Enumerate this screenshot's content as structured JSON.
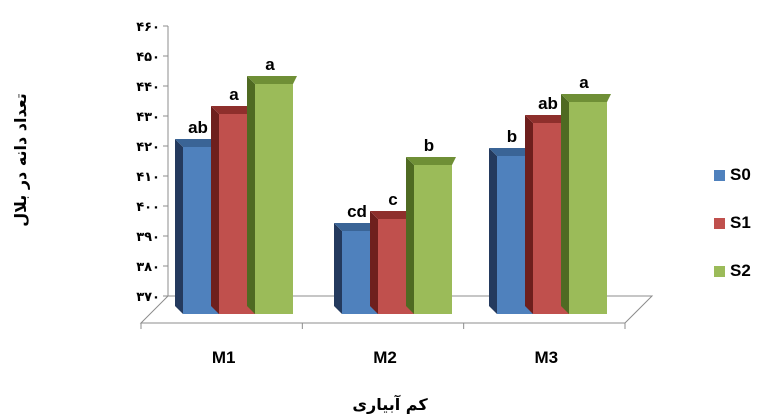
{
  "chart_data": {
    "type": "bar",
    "title": "",
    "xlabel": "کم آبیاری",
    "ylabel": "تعداد دانه در بلال",
    "ylim": [
      370,
      460
    ],
    "yticks": [
      370,
      380,
      390,
      400,
      410,
      420,
      430,
      440,
      450,
      460
    ],
    "ytick_labels": [
      "۳۷۰",
      "۳۸۰",
      "۳۹۰",
      "۴۰۰",
      "۴۱۰",
      "۴۲۰",
      "۴۳۰",
      "۴۴۰",
      "۴۵۰",
      "۴۶۰"
    ],
    "categories": [
      "M1",
      "M2",
      "M3"
    ],
    "series": [
      {
        "name": "S0",
        "values": [
          425,
          397,
          422
        ],
        "letters": [
          "ab",
          "cd",
          "b"
        ]
      },
      {
        "name": "S1",
        "values": [
          436,
          401,
          433
        ],
        "letters": [
          "a",
          "c",
          "ab"
        ]
      },
      {
        "name": "S2",
        "values": [
          446,
          419,
          440
        ],
        "letters": [
          "a",
          "b",
          "a"
        ]
      }
    ],
    "colors": {
      "S0": {
        "front": "#4f81bd",
        "side": "#243a5e",
        "top": "#3a6496"
      },
      "S1": {
        "front": "#c0504d",
        "side": "#6e1f1d",
        "top": "#8e2f2c"
      },
      "S2": {
        "front": "#9bbb59",
        "side": "#4f6a22",
        "top": "#6f8f36"
      }
    },
    "legend_position": "right",
    "grid": false
  }
}
